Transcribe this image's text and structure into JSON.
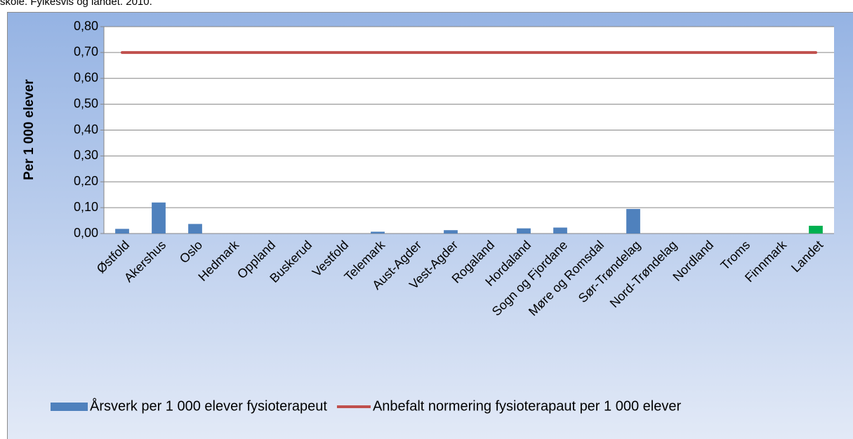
{
  "chart_data": {
    "type": "bar",
    "title": "skole. Fylkesvis og landet. 2010.",
    "y_label": "Per 1 000 elever",
    "categories": [
      "Østfold",
      "Akershus",
      "Oslo",
      "Hedmark",
      "Oppland",
      "Buskerud",
      "Vestfold",
      "Telemark",
      "Aust-Agder",
      "Vest-Agder",
      "Rogaland",
      "Hordaland",
      "Sogn og Fjordane",
      "Møre og Romsdal",
      "Sør-Trøndelag",
      "Nord-Trøndelag",
      "Nordland",
      "Troms",
      "Finnmark",
      "Landet"
    ],
    "series": [
      {
        "name": "Årsverk per 1 000 elever fysioterapeut",
        "type": "bar",
        "color": "#4f81bd",
        "colors": [
          "#4f81bd",
          "#4f81bd",
          "#4f81bd",
          "#4f81bd",
          "#4f81bd",
          "#4f81bd",
          "#4f81bd",
          "#4f81bd",
          "#4f81bd",
          "#4f81bd",
          "#4f81bd",
          "#4f81bd",
          "#4f81bd",
          "#4f81bd",
          "#4f81bd",
          "#4f81bd",
          "#4f81bd",
          "#4f81bd",
          "#4f81bd",
          "#00b050"
        ],
        "values": [
          0.018,
          0.12,
          0.037,
          0,
          0,
          0,
          0,
          0.007,
          0,
          0.013,
          0,
          0.02,
          0.023,
          0,
          0.095,
          0,
          0,
          0,
          0,
          0.03
        ]
      },
      {
        "name": "Anbefalt normering fysioterapaut per 1 000 elever",
        "type": "line",
        "color": "#c0504d",
        "values": [
          0.7,
          0.7,
          0.7,
          0.7,
          0.7,
          0.7,
          0.7,
          0.7,
          0.7,
          0.7,
          0.7,
          0.7,
          0.7,
          0.7,
          0.7,
          0.7,
          0.7,
          0.7,
          0.7,
          0.7
        ]
      }
    ],
    "ylim": [
      0,
      0.8
    ],
    "yticks": [
      {
        "value": 0,
        "label": "0,00"
      },
      {
        "value": 0.1,
        "label": "0,10"
      },
      {
        "value": 0.2,
        "label": "0,20"
      },
      {
        "value": 0.3,
        "label": "0,30"
      },
      {
        "value": 0.4,
        "label": "0,40"
      },
      {
        "value": 0.5,
        "label": "0,50"
      },
      {
        "value": 0.6,
        "label": "0,60"
      },
      {
        "value": 0.7,
        "label": "0,70"
      },
      {
        "value": 0.8,
        "label": "0,80"
      }
    ],
    "grid": true,
    "legend": "bottom"
  }
}
